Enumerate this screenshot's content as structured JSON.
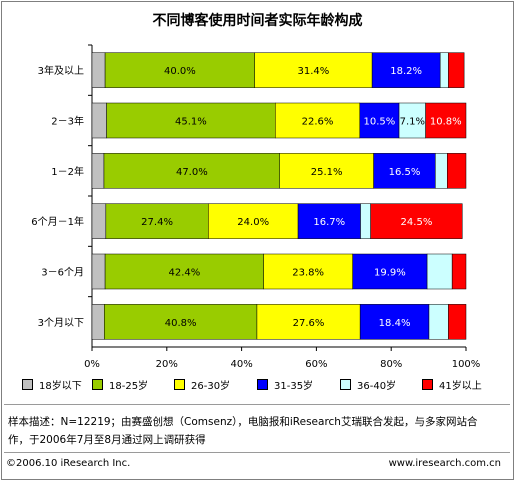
{
  "chart_data": {
    "type": "bar",
    "stacked": "percent",
    "orientation": "horizontal",
    "title": "不同博客使用时间者实际年龄构成",
    "categories": [
      "3年及以上",
      "2－3年",
      "1－2年",
      "6个月－1年",
      "3－6个月",
      "3个月以下"
    ],
    "series": [
      {
        "name": "18岁以下",
        "color": "#c0c0c0",
        "values": [
          3.5,
          3.9,
          3.2,
          3.7,
          3.5,
          3.3
        ],
        "labels": [
          "",
          "",
          "",
          "",
          "",
          ""
        ]
      },
      {
        "name": "18-25岁",
        "color": "#99cc00",
        "values": [
          40.0,
          45.1,
          47.0,
          27.4,
          42.4,
          40.8
        ],
        "labels": [
          "40.0%",
          "45.1%",
          "47.0%",
          "27.4%",
          "42.4%",
          "40.8%"
        ]
      },
      {
        "name": "26-30岁",
        "color": "#ffff00",
        "values": [
          31.4,
          22.6,
          25.1,
          24.0,
          23.8,
          27.6
        ],
        "labels": [
          "31.4%",
          "22.6%",
          "25.1%",
          "24.0%",
          "23.8%",
          "27.6%"
        ]
      },
      {
        "name": "31-35岁",
        "color": "#0000ff",
        "values": [
          18.2,
          10.5,
          16.5,
          16.7,
          19.9,
          18.4
        ],
        "labels": [
          "18.2%",
          "10.5%",
          "16.5%",
          "16.7%",
          "19.9%",
          "18.4%"
        ]
      },
      {
        "name": "36-40岁",
        "color": "#ccffff",
        "values": [
          2.2,
          7.1,
          3.2,
          2.7,
          6.7,
          5.2
        ],
        "labels": [
          "",
          "7.1%",
          "",
          "",
          "",
          ""
        ]
      },
      {
        "name": "41岁以上",
        "color": "#ff0000",
        "values": [
          4.2,
          10.8,
          5.0,
          24.5,
          3.7,
          4.7
        ],
        "labels": [
          "",
          "10.8%",
          "",
          "24.5%",
          "",
          ""
        ]
      }
    ],
    "xlim": [
      0,
      100
    ],
    "xticks": [
      "0%",
      "20%",
      "40%",
      "60%",
      "80%",
      "100%"
    ],
    "grid": false,
    "legend_position": "bottom"
  },
  "footnote": {
    "line1": "样本描述：N=12219；由赛盛创想（Comsenz），电脑报和iResearch艾瑞联合发起，与多家网站合",
    "line2": "作，于2006年7月至8月通过网上调研获得"
  },
  "copyright": "©2006.10 iResearch Inc.",
  "website": "www.iresearch.com.cn"
}
